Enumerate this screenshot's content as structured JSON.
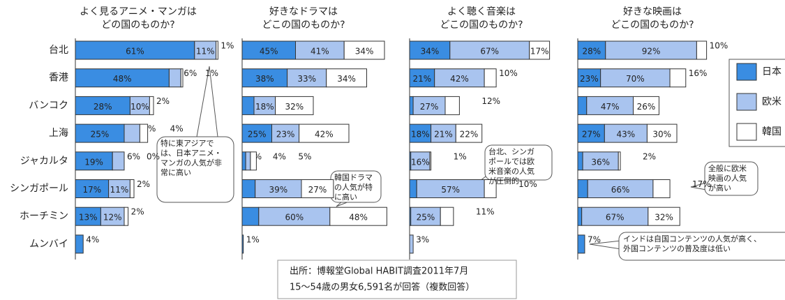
{
  "categories": [
    "台北",
    "香港",
    "バンコク",
    "上海",
    "ジャカルタ",
    "シンガポール",
    "ホーチミン",
    "ムンバイ"
  ],
  "legend": [
    "日本",
    "欧米",
    "韓国"
  ],
  "source": [
    "出所：博報堂Global HABIT調査2011年7月",
    "15〜54歳の男女6,591名が回答（複数回答）"
  ],
  "chart_data": [
    {
      "type": "bar",
      "title": [
        "よく見るアニメ・マンガは",
        "どの国のものか?"
      ],
      "series": [
        {
          "name": "日本",
          "color": "#3a8de2",
          "values": [
            61,
            48,
            28,
            25,
            19,
            17,
            13,
            4
          ],
          "value_labels": [
            "61%",
            "48%",
            "28%",
            "25%",
            "19%",
            "17%",
            "13%",
            "4%"
          ]
        },
        {
          "name": "欧米",
          "color": "#a9c4ef",
          "values": [
            11,
            6,
            10,
            8,
            6,
            11,
            12,
            null
          ],
          "value_labels": [
            "11%",
            "6%",
            "10%",
            "8%",
            "6%",
            "11%",
            "12%",
            null
          ]
        },
        {
          "name": "韓国",
          "color": "#ffffff",
          "values": [
            1,
            1,
            2,
            4,
            0,
            2,
            2,
            null
          ],
          "value_labels": [
            "1%",
            "1%",
            "2%",
            "4%",
            "0%",
            "2%",
            "2%",
            null
          ]
        }
      ],
      "annotations": [
        [
          "特に東アジアで",
          "は、日本アニメ・",
          "マンガの人気が非",
          "常に高い"
        ]
      ]
    },
    {
      "type": "bar",
      "title": [
        "好きなドラマは",
        "どこの国のものか?"
      ],
      "series": [
        {
          "name": "日本",
          "color": "#3a8de2",
          "values": [
            45,
            38,
            10,
            25,
            3,
            11,
            14,
            1
          ],
          "value_labels": [
            "45%",
            "38%",
            "10%",
            "25%",
            "3%",
            "11%",
            "14%",
            "1%"
          ]
        },
        {
          "name": "欧米",
          "color": "#a9c4ef",
          "values": [
            41,
            33,
            18,
            23,
            4,
            39,
            60,
            null
          ],
          "value_labels": [
            "41%",
            "33%",
            "18%",
            "23%",
            "4%",
            "39%",
            "60%",
            null
          ]
        },
        {
          "name": "韓国",
          "color": "#ffffff",
          "values": [
            34,
            34,
            32,
            42,
            5,
            27,
            48,
            null
          ],
          "value_labels": [
            "34%",
            "34%",
            "32%",
            "42%",
            "5%",
            "27%",
            "48%",
            null
          ]
        }
      ],
      "annotations": [
        [
          "韓国ドラマ",
          "の人気が特",
          "に高い"
        ]
      ]
    },
    {
      "type": "bar",
      "title": [
        "よく聴く音楽は",
        "どこの国のものか?"
      ],
      "series": [
        {
          "name": "日本",
          "color": "#3a8de2",
          "values": [
            34,
            21,
            3,
            18,
            1,
            6,
            1,
            null
          ],
          "value_labels": [
            "34%",
            "21%",
            "3%",
            "18%",
            "1%",
            "6%",
            "1%",
            null
          ]
        },
        {
          "name": "欧米",
          "color": "#a9c4ef",
          "values": [
            67,
            42,
            27,
            21,
            16,
            57,
            25,
            3
          ],
          "value_labels": [
            "67%",
            "42%",
            "27%",
            "21%",
            "16%",
            "57%",
            "25%",
            "3%"
          ]
        },
        {
          "name": "韓国",
          "color": "#ffffff",
          "values": [
            17,
            10,
            12,
            22,
            1,
            10,
            11,
            null
          ],
          "value_labels": [
            "17%",
            "10%",
            "12%",
            "22%",
            "1%",
            "10%",
            "11%",
            null
          ]
        }
      ],
      "annotations": [
        [
          "台北、シンガ",
          "ポールでは欧",
          "米音楽の人気",
          "が圧倒的"
        ]
      ]
    },
    {
      "type": "bar",
      "title": [
        "好きな映画は",
        "どこの国のものか?"
      ],
      "series": [
        {
          "name": "日本",
          "color": "#3a8de2",
          "values": [
            28,
            23,
            9,
            27,
            5,
            10,
            4,
            7
          ],
          "value_labels": [
            "28%",
            "23%",
            "9%",
            "27%",
            "5%",
            "10%",
            "4%",
            "7%"
          ]
        },
        {
          "name": "欧米",
          "color": "#a9c4ef",
          "values": [
            92,
            70,
            47,
            43,
            36,
            66,
            67,
            null
          ],
          "value_labels": [
            "92%",
            "70%",
            "47%",
            "43%",
            "36%",
            "66%",
            "67%",
            null
          ]
        },
        {
          "name": "韓国",
          "color": "#ffffff",
          "values": [
            10,
            16,
            26,
            30,
            2,
            17,
            32,
            null
          ],
          "value_labels": [
            "10%",
            "16%",
            "26%",
            "30%",
            "2%",
            "17%",
            "32%",
            null
          ]
        }
      ],
      "annotations": [
        [
          "全般に欧米",
          "映画の人気",
          "が高い"
        ],
        [
          "インドは自国コンテンツの人気が高く、",
          "外国コンテンツの普及度は低い"
        ]
      ]
    }
  ]
}
